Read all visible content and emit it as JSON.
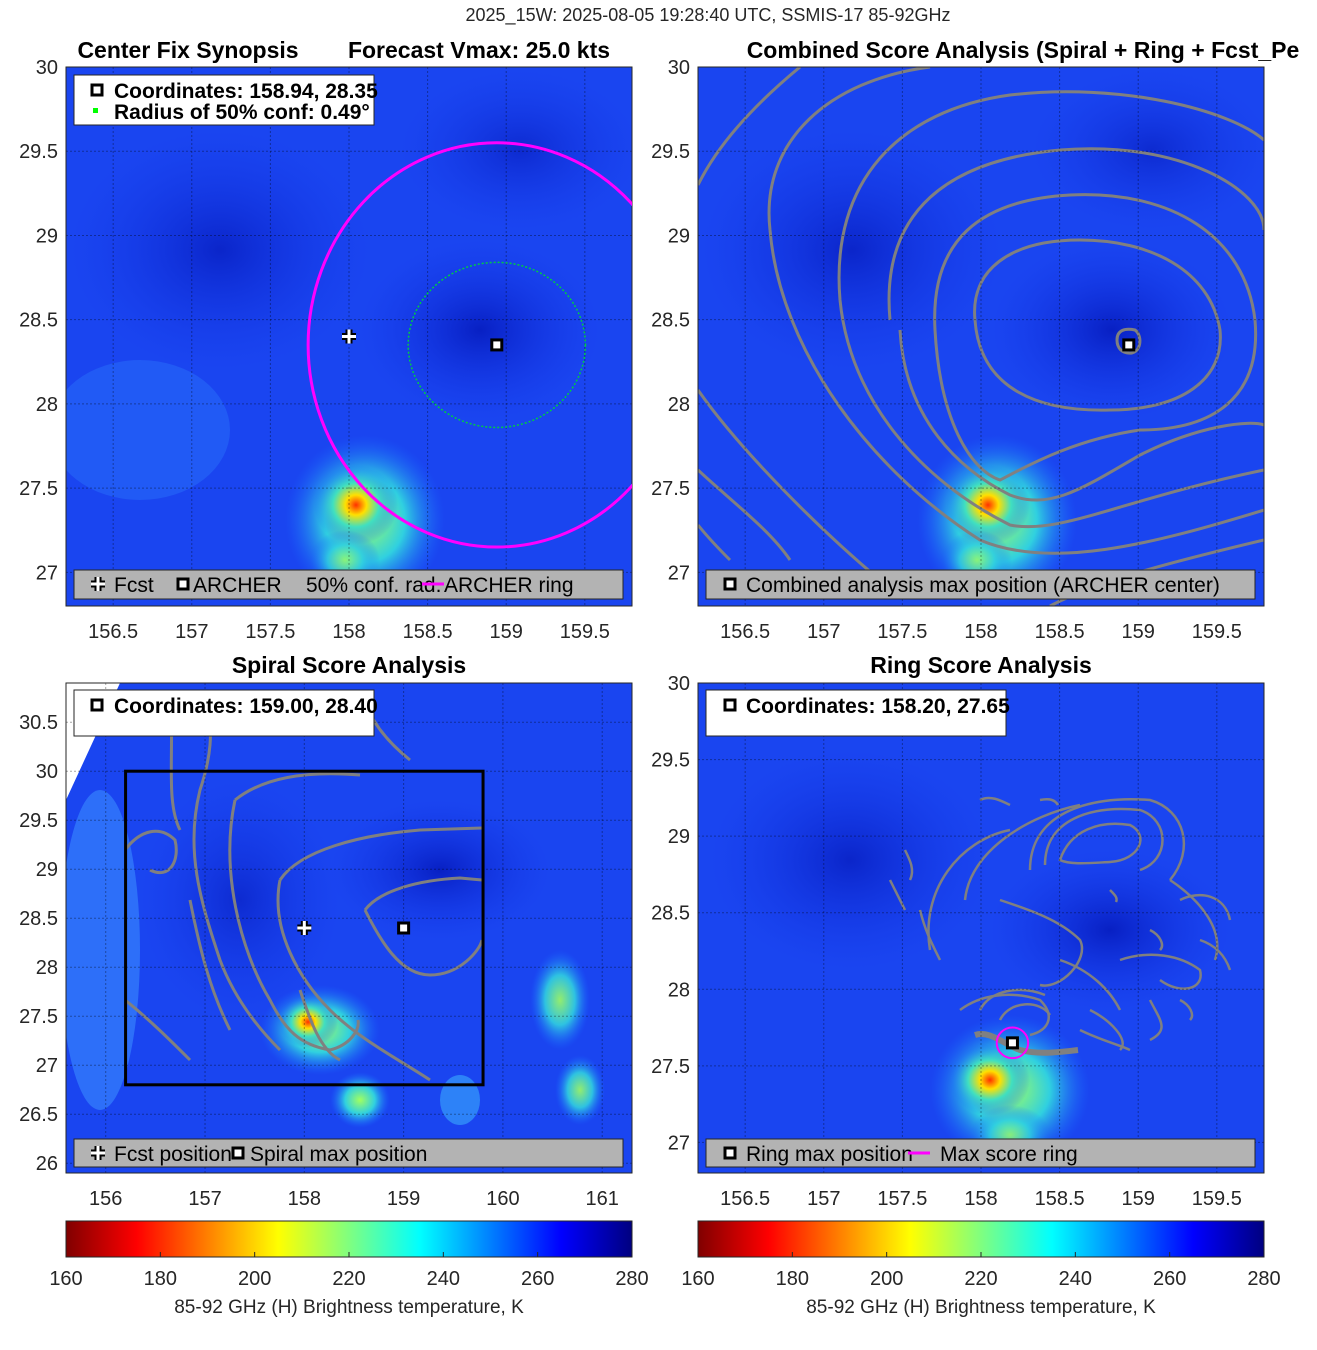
{
  "figure": {
    "suptitle": "2025_15W: 2025-08-05 19:28:40 UTC, SSMIS-17 85-92GHz"
  },
  "panels": {
    "p1": {
      "title_left": "Center Fix Synopsis",
      "title_right": "Forecast Vmax: 25.0 kts",
      "info_line1": "Coordinates: 158.94, 28.35",
      "info_line2": "Radius of 50% conf: 0.49°",
      "legend": {
        "fcst": "Fcst",
        "archer": "ARCHER",
        "conf": "50% conf. rad.",
        "ring": "ARCHER ring"
      }
    },
    "p2": {
      "title": "Combined Score Analysis (Spiral + Ring + Fcst_Pe",
      "legend": "Combined analysis max position (ARCHER center)"
    },
    "p3": {
      "title": "Spiral Score Analysis",
      "info": "Coordinates: 159.00, 28.40",
      "legend": {
        "fcst": "Fcst position",
        "spiral": "Spiral max position"
      }
    },
    "p4": {
      "title": "Ring Score Analysis",
      "info": "Coordinates: 158.20, 27.65",
      "legend": {
        "ring": "Ring max position",
        "score": "Max score ring"
      }
    }
  },
  "colorbar": {
    "label": "85-92 GHz (H) Brightness temperature, K",
    "ticks": [
      "160",
      "180",
      "200",
      "220",
      "240",
      "260",
      "280"
    ]
  },
  "colors": {
    "ring": "#ff00ff",
    "conf": "#00cc44",
    "contour": "#808080",
    "legend_bg": "#b3b3b3"
  },
  "chart_data": [
    {
      "type": "heatmap",
      "name": "Center Fix Synopsis",
      "xlim": [
        156.2,
        159.8
      ],
      "ylim": [
        26.8,
        30.0
      ],
      "xticks": [
        "156.5",
        "157",
        "157.5",
        "158",
        "158.5",
        "159",
        "159.5"
      ],
      "yticks": [
        "27",
        "27.5",
        "28",
        "28.5",
        "29",
        "29.5",
        "30"
      ],
      "forecast_position": [
        158.0,
        28.4
      ],
      "archer_center": [
        158.94,
        28.35
      ],
      "conf_radius_deg": 0.49,
      "archer_ring_radius_deg": 1.2,
      "colorbar_range_K": [
        160,
        280
      ]
    },
    {
      "type": "heatmap",
      "name": "Combined Score Analysis",
      "xlim": [
        156.2,
        159.8
      ],
      "ylim": [
        26.8,
        30.0
      ],
      "xticks": [
        "156.5",
        "157",
        "157.5",
        "158",
        "158.5",
        "159",
        "159.5"
      ],
      "yticks": [
        "27",
        "27.5",
        "28",
        "28.5",
        "29",
        "29.5",
        "30"
      ],
      "max_position": [
        158.94,
        28.35
      ]
    },
    {
      "type": "heatmap",
      "name": "Spiral Score Analysis",
      "xlim": [
        155.6,
        161.3
      ],
      "ylim": [
        25.9,
        30.9
      ],
      "xticks": [
        "156",
        "157",
        "158",
        "159",
        "160",
        "161"
      ],
      "yticks": [
        "26",
        "26.5",
        "27",
        "27.5",
        "28",
        "28.5",
        "29",
        "29.5",
        "30",
        "30.5"
      ],
      "forecast_position": [
        158.0,
        28.4
      ],
      "spiral_max_position": [
        159.0,
        28.4
      ],
      "analysis_box": {
        "lon": [
          156.2,
          159.8
        ],
        "lat": [
          26.8,
          30.0
        ]
      }
    },
    {
      "type": "heatmap",
      "name": "Ring Score Analysis",
      "xlim": [
        156.2,
        159.8
      ],
      "ylim": [
        26.8,
        30.0
      ],
      "xticks": [
        "156.5",
        "157",
        "157.5",
        "158",
        "158.5",
        "159",
        "159.5"
      ],
      "yticks": [
        "27",
        "27.5",
        "28",
        "28.5",
        "29",
        "29.5",
        "30"
      ],
      "ring_max_position": [
        158.2,
        27.65
      ],
      "max_score_ring_radius_deg": 0.1
    }
  ]
}
